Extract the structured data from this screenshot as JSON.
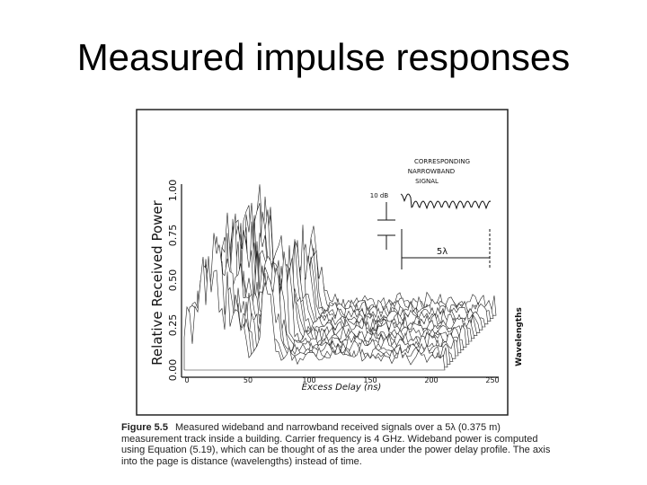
{
  "title": "Measured impulse responses",
  "figure": {
    "y_axis_label": "Relative Received Power",
    "y_ticks": [
      "0.00",
      "0.25",
      "0.50",
      "0.75",
      "1.00"
    ],
    "x_axis_label": "Excess Delay (ns)",
    "x_ticks": [
      "0",
      "50",
      "100",
      "150",
      "200",
      "250"
    ],
    "depth_axis_label": "Wavelengths",
    "inset_title": [
      "CORRESPONDING",
      "NARROWBAND",
      "SIGNAL"
    ],
    "inset_scale": "10 dB",
    "inset_span": "5λ"
  },
  "caption": {
    "label": "Figure 5.5",
    "text": "Measured wideband and narrowband received signals over a 5λ (0.375 m) measurement track inside a building. Carrier frequency is 4 GHz. Wideband power is computed using Equation (5.19), which can be thought of as the area under the power delay profile. The axis into the page is distance (wavelengths) instead of time."
  }
}
